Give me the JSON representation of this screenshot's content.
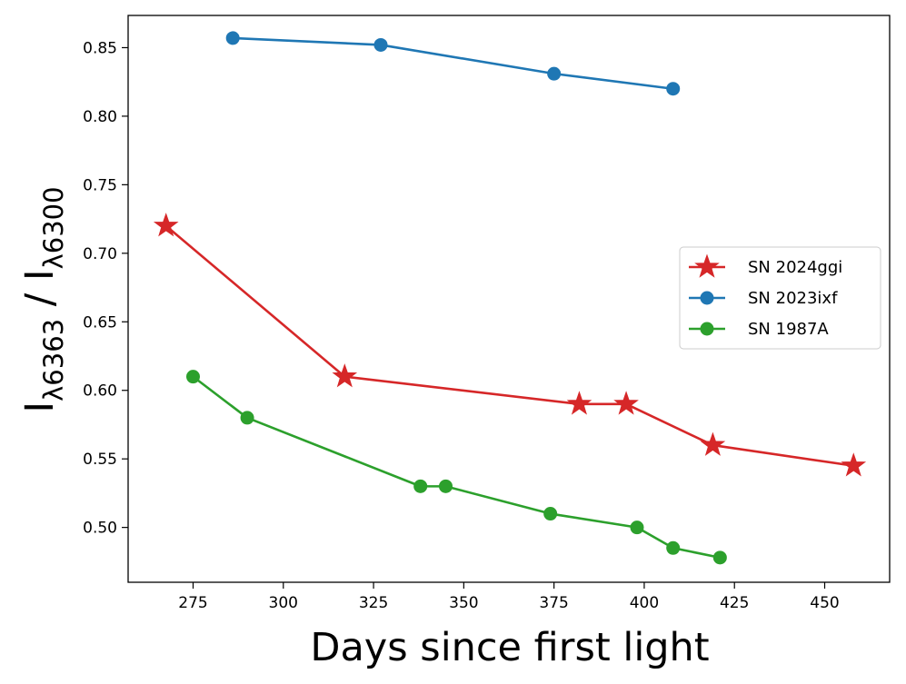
{
  "chart_data": {
    "type": "line",
    "title": "",
    "xlabel": "Days since first light",
    "ylabel": {
      "base1": "I",
      "sub1": "λ6363",
      "sep": " / ",
      "base2": "I",
      "sub2": "λ6300"
    },
    "xlim": [
      257,
      468
    ],
    "ylim": [
      0.46,
      0.8735
    ],
    "xticks": [
      275,
      300,
      325,
      350,
      375,
      400,
      425,
      450
    ],
    "xtick_labels": [
      "275",
      "300",
      "325",
      "350",
      "375",
      "400",
      "425",
      "450"
    ],
    "yticks": [
      0.5,
      0.55,
      0.6,
      0.65,
      0.7,
      0.75,
      0.8,
      0.85
    ],
    "ytick_labels": [
      "0.50",
      "0.55",
      "0.60",
      "0.65",
      "0.70",
      "0.75",
      "0.80",
      "0.85"
    ],
    "grid": false,
    "legend_position": "center-right",
    "series": [
      {
        "name": "SN 2024ggi",
        "color": "#d62728",
        "marker": "star",
        "x": [
          267.5,
          317,
          382,
          395,
          419,
          458
        ],
        "y": [
          0.72,
          0.61,
          0.59,
          0.59,
          0.56,
          0.545
        ]
      },
      {
        "name": "SN 2023ixf",
        "color": "#1f77b4",
        "marker": "circle",
        "x": [
          286,
          327,
          375,
          408
        ],
        "y": [
          0.857,
          0.852,
          0.831,
          0.82
        ]
      },
      {
        "name": "SN 1987A",
        "color": "#2ca02c",
        "marker": "circle",
        "x": [
          275,
          290,
          338,
          345,
          374,
          398,
          408,
          421
        ],
        "y": [
          0.61,
          0.58,
          0.53,
          0.53,
          0.51,
          0.5,
          0.485,
          0.478
        ]
      }
    ]
  }
}
